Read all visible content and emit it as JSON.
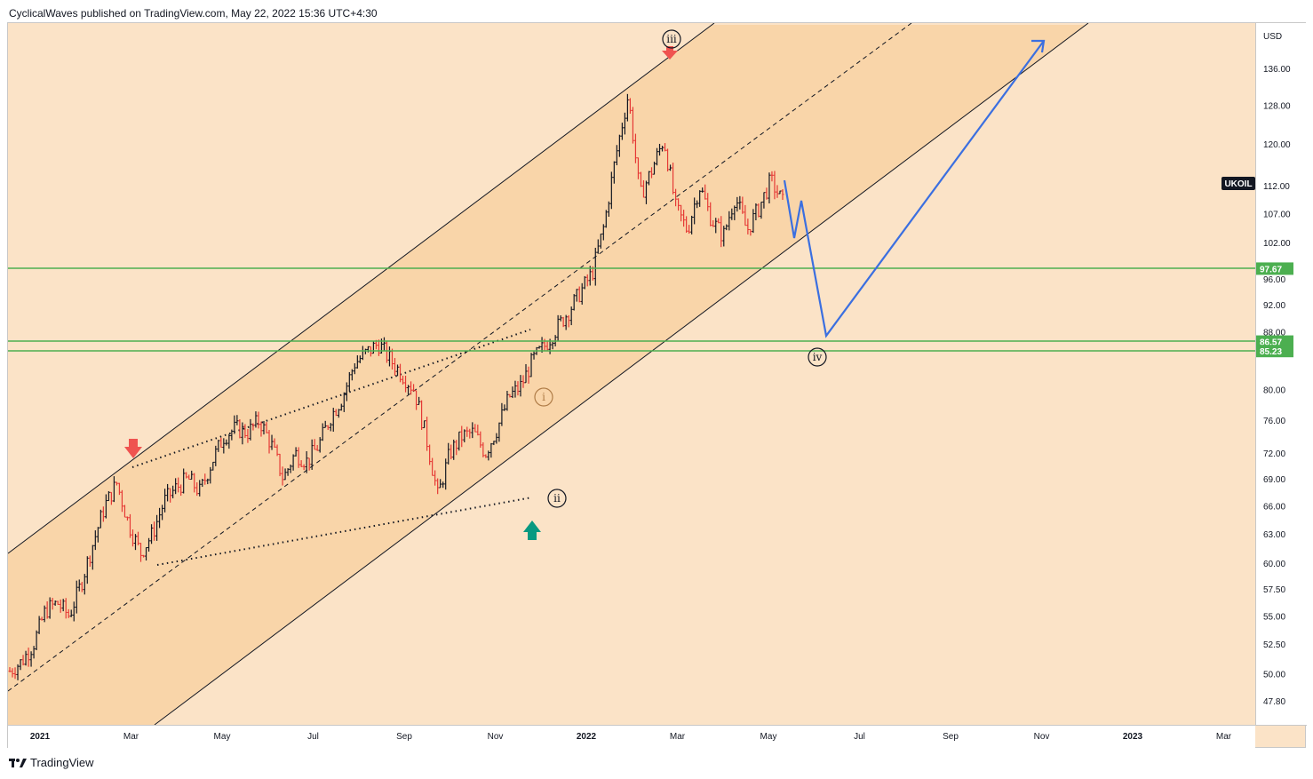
{
  "header": {
    "publisher_text": "CyclicalWaves published on TradingView.com, May 22, 2022 15:36 UTC+4:30"
  },
  "footer": {
    "brand": "TradingView",
    "logo_icon": "tradingview-logo-icon"
  },
  "chart_data": {
    "type": "candlestick",
    "symbol": "UKOIL",
    "currency": "USD",
    "y_axis_ticks": [
      "136.00",
      "128.00",
      "120.00",
      "112.00",
      "107.00",
      "102.00",
      "96.00",
      "92.00",
      "88.00",
      "80.00",
      "76.00",
      "72.00",
      "69.00",
      "66.00",
      "63.00",
      "60.00",
      "57.50",
      "55.00",
      "52.50",
      "50.00",
      "47.80"
    ],
    "x_axis_ticks": [
      {
        "label": "2021",
        "bold": true
      },
      {
        "label": "Mar",
        "bold": false
      },
      {
        "label": "May",
        "bold": false
      },
      {
        "label": "Jul",
        "bold": false
      },
      {
        "label": "Sep",
        "bold": false
      },
      {
        "label": "Nov",
        "bold": false
      },
      {
        "label": "2022",
        "bold": true
      },
      {
        "label": "Mar",
        "bold": false
      },
      {
        "label": "May",
        "bold": false
      },
      {
        "label": "Jul",
        "bold": false
      },
      {
        "label": "Sep",
        "bold": false
      },
      {
        "label": "Nov",
        "bold": false
      },
      {
        "label": "2023",
        "bold": true
      },
      {
        "label": "Mar",
        "bold": false
      }
    ],
    "horizontal_levels": [
      {
        "value": "97.67",
        "color": "#4caf50"
      },
      {
        "value": "86.57",
        "color": "#4caf50"
      },
      {
        "value": "85.23",
        "color": "#4caf50"
      }
    ],
    "wave_labels": [
      "iii",
      "i",
      "ii",
      "iv"
    ],
    "price_series": [
      50.2,
      51.0,
      52.5,
      55.5,
      56.2,
      55.0,
      58.0,
      62.0,
      66.0,
      68.5,
      64.0,
      61.0,
      63.0,
      66.5,
      68.0,
      69.0,
      67.5,
      71.0,
      74.0,
      75.0,
      74.5,
      76.0,
      73.0,
      69.0,
      72.0,
      71.0,
      73.0,
      76.5,
      79.0,
      83.5,
      85.0,
      86.3,
      84.0,
      82.0,
      80.0,
      74.0,
      67.0,
      72.0,
      74.0,
      74.5,
      72.0,
      75.0,
      79.0,
      80.5,
      84.0,
      86.0,
      88.5,
      91.0,
      94.0,
      97.0,
      105.0,
      118.0,
      130.0,
      110.0,
      115.0,
      121.0,
      108.0,
      104.0,
      112.0,
      106.0,
      103.0,
      110.0,
      104.0,
      108.0,
      113.0,
      109.0
    ],
    "projection": [
      113,
      101,
      109,
      86.3,
      139
    ],
    "colors": {
      "up": "#131722",
      "down": "#e53935",
      "projection": "#3b6fe0",
      "channel_fill": "#f9d5a9",
      "background": "#fbe3c7"
    }
  }
}
